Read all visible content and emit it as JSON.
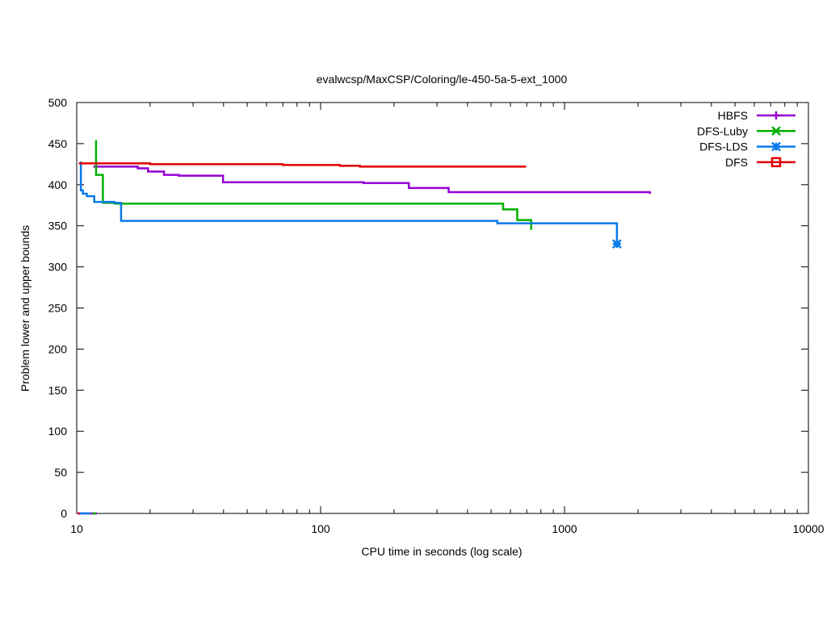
{
  "chart_data": {
    "type": "line",
    "title": "evalwcsp/MaxCSP/Coloring/le-450-5a-5-ext_1000",
    "xlabel": "CPU time in seconds (log scale)",
    "ylabel": "Problem lower and upper bounds",
    "xscale": "log",
    "xlim": [
      10,
      10000
    ],
    "ylim": [
      0,
      500
    ],
    "xticks": [
      10,
      100,
      1000,
      10000
    ],
    "xtick_labels": [
      "10",
      "100",
      "1000",
      "10000"
    ],
    "yticks": [
      0,
      50,
      100,
      150,
      200,
      250,
      300,
      350,
      400,
      450,
      500
    ],
    "ytick_labels": [
      "0",
      "50",
      "100",
      "150",
      "200",
      "250",
      "300",
      "350",
      "400",
      "450",
      "500"
    ],
    "grid": false,
    "legend_position": "top-right",
    "series": [
      {
        "name": "HBFS",
        "color": "#9400d3",
        "marker": "plus",
        "x": [
          11.7,
          17.8,
          19.6,
          22.8,
          26.2,
          39.8,
          150,
          230,
          335,
          2240
        ],
        "y": [
          422,
          420,
          416,
          412,
          411,
          403,
          402,
          396,
          391,
          389
        ],
        "lower_x": [
          10.1,
          12.1
        ],
        "lower_y": [
          0,
          0
        ]
      },
      {
        "name": "DFS-Luby",
        "color": "#00b000",
        "marker": "x",
        "x": [
          11.9,
          12.0,
          12.8,
          14.3,
          560,
          640,
          730,
          730
        ],
        "y": [
          453,
          412,
          378,
          377,
          370,
          357,
          345,
          345
        ],
        "lower_x": [
          11.6,
          12.0
        ],
        "lower_y": [
          0,
          0
        ]
      },
      {
        "name": "DFS-LDS",
        "color": "#0a7ae8",
        "marker": "star",
        "x": [
          10.3,
          10.4,
          10.6,
          11.0,
          11.8,
          14.3,
          15.2,
          530,
          1640,
          1640
        ],
        "y": [
          427,
          393,
          389,
          386,
          379,
          378,
          356,
          353,
          352,
          328
        ],
        "lower_x": [
          10.1,
          11.4
        ],
        "lower_y": [
          0,
          0
        ]
      },
      {
        "name": "DFS",
        "color": "#e00000",
        "marker": "square",
        "x": [
          10.2,
          20,
          70,
          120,
          145,
          690
        ],
        "y": [
          426,
          425,
          424,
          423,
          422,
          421
        ],
        "lower_x": [
          10.1,
          10.3
        ],
        "lower_y": [
          0,
          0
        ]
      }
    ]
  }
}
